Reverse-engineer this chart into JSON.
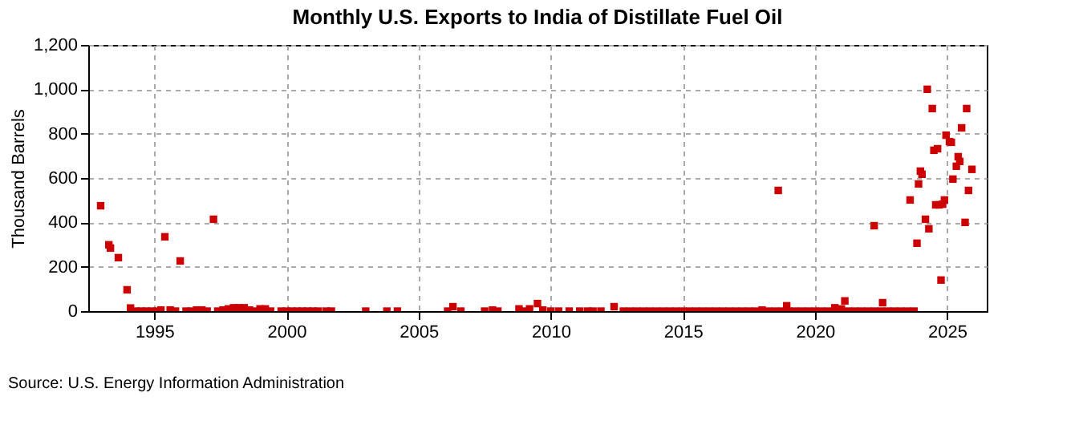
{
  "chart_data": {
    "type": "scatter",
    "title": "Monthly U.S. Exports to India of Distillate Fuel Oil",
    "ylabel": "Thousand Barrels",
    "annotations": [
      "Source: U.S. Energy Information Administration"
    ],
    "x": [
      1992.97,
      1993.28,
      1993.34,
      1993.64,
      1993.97,
      1994.1,
      1994.3,
      1994.5,
      1994.7,
      1994.9,
      1995.1,
      1995.25,
      1995.4,
      1995.6,
      1995.8,
      1995.98,
      1996.2,
      1996.4,
      1996.6,
      1996.8,
      1997.0,
      1997.24,
      1997.4,
      1997.6,
      1997.8,
      1998.0,
      1998.2,
      1998.4,
      1998.6,
      1998.8,
      1999.0,
      1999.2,
      1999.4,
      1999.8,
      2000.0,
      2000.2,
      2000.4,
      2000.6,
      2000.8,
      2001.0,
      2001.2,
      2001.5,
      2001.7,
      2003.0,
      2003.8,
      2004.2,
      2006.1,
      2006.3,
      2006.6,
      2007.5,
      2007.8,
      2008.0,
      2008.8,
      2009.0,
      2009.2,
      2009.5,
      2009.7,
      2010.0,
      2010.3,
      2010.7,
      2011.1,
      2011.4,
      2011.6,
      2011.9,
      2012.4,
      2012.75,
      2013.0,
      2013.25,
      2013.5,
      2013.75,
      2014.0,
      2014.25,
      2014.5,
      2014.75,
      2015.0,
      2015.25,
      2015.5,
      2015.75,
      2016.0,
      2016.25,
      2016.5,
      2016.75,
      2017.0,
      2017.25,
      2017.5,
      2017.75,
      2018.0,
      2018.25,
      2018.5,
      2018.75,
      2019.0,
      2019.25,
      2019.5,
      2019.75,
      2020.0,
      2020.25,
      2020.5,
      2020.75,
      2021.0,
      2021.25,
      2021.5,
      2021.75,
      2022.0,
      2022.25,
      2022.5,
      2022.75,
      2023.0,
      2023.25,
      2023.5,
      2023.75,
      2018.61,
      2018.93,
      2021.13,
      2022.24,
      2022.56,
      2023.6,
      2023.86,
      2023.92,
      2023.99,
      2024.05,
      2024.18,
      2024.25,
      2024.31,
      2024.44,
      2024.5,
      2024.57,
      2024.64,
      2024.7,
      2024.77,
      2024.83,
      2024.9,
      2024.96,
      2025.09,
      2025.16,
      2025.22,
      2025.35,
      2025.42,
      2025.48,
      2025.55,
      2025.68,
      2025.74,
      2025.81,
      2025.94
    ],
    "series": [
      {
        "color": "#cc0000",
        "values": [
          475,
          299,
          284,
          241,
          96,
          14,
          0,
          0,
          0,
          0,
          0,
          5,
          335,
          5,
          0,
          226,
          0,
          0,
          5,
          5,
          0,
          414,
          0,
          5,
          10,
          15,
          15,
          15,
          5,
          0,
          10,
          10,
          0,
          0,
          0,
          0,
          0,
          0,
          0,
          0,
          0,
          0,
          0,
          0,
          0,
          0,
          0,
          20,
          0,
          0,
          5,
          0,
          10,
          0,
          10,
          34,
          5,
          0,
          0,
          0,
          0,
          0,
          0,
          0,
          20,
          0,
          0,
          0,
          0,
          0,
          0,
          0,
          0,
          0,
          0,
          0,
          0,
          0,
          0,
          0,
          0,
          0,
          0,
          0,
          0,
          0,
          5,
          0,
          0,
          0,
          0,
          0,
          0,
          0,
          0,
          0,
          0,
          15,
          10,
          0,
          0,
          0,
          0,
          0,
          0,
          0,
          0,
          0,
          0,
          0,
          544,
          24,
          46,
          385,
          38,
          501,
          306,
          573,
          631,
          617,
          414,
          1000,
          371,
          913,
          725,
          479,
          732,
          479,
          140,
          482,
          501,
          793,
          764,
          761,
          595,
          653,
          696,
          675,
          826,
          400,
          913,
          544,
          639
        ]
      }
    ],
    "xlim": [
      1992.5,
      2026.5
    ],
    "xticks": [
      1995,
      2000,
      2005,
      2010,
      2015,
      2020,
      2025
    ],
    "ylim": [
      0,
      1200
    ],
    "yticks": [
      0,
      200,
      400,
      600,
      800,
      {
        "value": 1000,
        "label": "1,000"
      },
      {
        "value": 1200,
        "label": "1,200"
      }
    ],
    "grid": true,
    "marker": "square"
  }
}
